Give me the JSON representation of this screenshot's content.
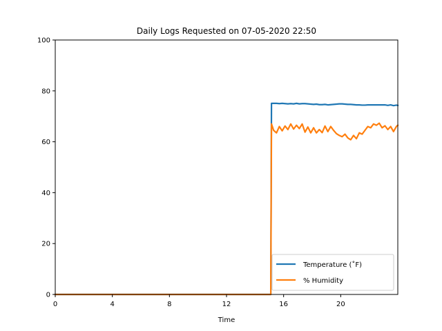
{
  "chart_data": {
    "type": "line",
    "title": "Daily Logs Requested on 07-05-2020 22:50",
    "xlabel": "Time",
    "ylabel": "",
    "xlim": [
      0,
      24
    ],
    "ylim": [
      0,
      100
    ],
    "xticks": [
      0,
      4,
      8,
      12,
      16,
      20
    ],
    "xtick_labels": [
      "0",
      "4",
      "8",
      "12",
      "16",
      "20"
    ],
    "yticks": [
      0,
      20,
      40,
      60,
      80,
      100
    ],
    "ytick_labels": [
      "0",
      "20",
      "40",
      "60",
      "80",
      "100"
    ],
    "grid": false,
    "legend_position": "lower-right",
    "series": [
      {
        "name": "Temperature (˚F)",
        "color": "#1f77b4",
        "x": [
          0,
          15.1,
          15.15,
          15.3,
          15.5,
          15.7,
          15.9,
          16.1,
          16.3,
          16.5,
          16.7,
          16.9,
          17.1,
          17.3,
          17.5,
          17.7,
          17.9,
          18.1,
          18.3,
          18.5,
          18.7,
          18.9,
          19.1,
          19.3,
          19.5,
          19.7,
          19.9,
          20.1,
          20.3,
          20.5,
          20.7,
          20.9,
          21.1,
          21.3,
          21.5,
          21.7,
          21.9,
          22.1,
          22.3,
          22.5,
          22.7,
          22.9,
          23.1,
          23.3,
          23.5,
          23.7,
          23.9,
          24
        ],
        "y": [
          0,
          0,
          75.1,
          75.1,
          75.1,
          75.0,
          75.1,
          75.0,
          74.9,
          75.0,
          74.9,
          75.1,
          74.9,
          75.0,
          75.0,
          74.9,
          74.8,
          74.7,
          74.8,
          74.6,
          74.6,
          74.7,
          74.5,
          74.6,
          74.7,
          74.8,
          74.9,
          74.9,
          74.8,
          74.7,
          74.7,
          74.6,
          74.5,
          74.5,
          74.4,
          74.4,
          74.5,
          74.5,
          74.5,
          74.5,
          74.5,
          74.5,
          74.5,
          74.3,
          74.5,
          74.2,
          74.4,
          74.3
        ]
      },
      {
        "name": "% Humidity",
        "color": "#ff7f0e",
        "x": [
          0,
          15.1,
          15.15,
          15.3,
          15.5,
          15.7,
          15.9,
          16.1,
          16.3,
          16.5,
          16.7,
          16.9,
          17.1,
          17.3,
          17.5,
          17.7,
          17.9,
          18.1,
          18.3,
          18.5,
          18.7,
          18.9,
          19.1,
          19.3,
          19.5,
          19.7,
          19.9,
          20.1,
          20.3,
          20.5,
          20.7,
          20.9,
          21.1,
          21.3,
          21.5,
          21.7,
          21.9,
          22.1,
          22.3,
          22.5,
          22.7,
          22.9,
          23.1,
          23.3,
          23.5,
          23.7,
          23.9,
          24
        ],
        "y": [
          0,
          0,
          67.0,
          64.5,
          63.5,
          66.0,
          64.3,
          66.2,
          64.8,
          67.0,
          65.0,
          66.5,
          65.2,
          67.0,
          63.8,
          65.8,
          63.5,
          65.5,
          63.5,
          64.8,
          63.6,
          66.2,
          64.0,
          66.0,
          64.5,
          63.2,
          62.5,
          62.0,
          63.0,
          61.5,
          60.8,
          62.5,
          61.2,
          63.5,
          63.0,
          64.5,
          66.0,
          65.5,
          67.0,
          66.5,
          67.3,
          65.5,
          66.3,
          64.8,
          66.0,
          64.0,
          66.0,
          66.5
        ]
      }
    ]
  }
}
